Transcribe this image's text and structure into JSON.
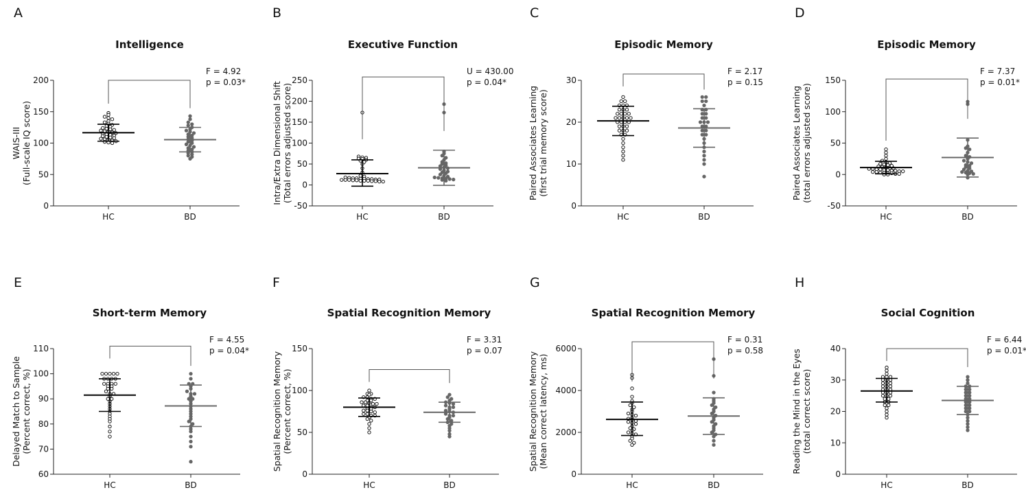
{
  "colors": {
    "hc": "#000000",
    "bd": "#666666",
    "bracket": "#555555",
    "axis": "#222222"
  },
  "chart_data": [
    {
      "panel": "A",
      "type": "scatter",
      "title": "Intelligence",
      "ylabel": [
        "WAIS-III",
        "(Full-scale IQ score)"
      ],
      "ylim": [
        0,
        200
      ],
      "yticks": [
        0,
        50,
        100,
        150,
        200
      ],
      "categories": [
        "HC",
        "BD"
      ],
      "series": [
        {
          "mean": 116.5,
          "sd_low": 103,
          "sd_high": 130,
          "values": [
            148,
            145,
            142,
            140,
            138,
            135,
            133,
            131,
            129,
            127,
            126,
            124,
            123,
            122,
            121,
            120,
            119,
            118,
            117,
            116,
            115,
            114,
            113,
            112,
            111,
            110,
            109,
            108,
            107,
            106,
            105,
            104,
            103,
            102,
            101,
            100
          ]
        },
        {
          "mean": 105.5,
          "sd_low": 86,
          "sd_high": 125,
          "values": [
            143,
            138,
            133,
            130,
            128,
            125,
            122,
            120,
            118,
            116,
            114,
            112,
            110,
            108,
            106,
            104,
            102,
            100,
            98,
            96,
            94,
            92,
            90,
            88,
            86,
            84,
            82,
            80,
            78,
            75
          ]
        }
      ],
      "stats": [
        "F = 4.92",
        "p = 0.03*"
      ],
      "bracket_top": 200
    },
    {
      "panel": "B",
      "type": "scatter",
      "title": "Executive Function",
      "ylabel": [
        "Intra/Extra Dimensional Shift",
        "(Total errors adjusted score)"
      ],
      "ylim": [
        -50,
        250
      ],
      "yticks": [
        -50,
        0,
        50,
        100,
        150,
        200,
        250
      ],
      "categories": [
        "HC",
        "BD"
      ],
      "series": [
        {
          "mean": 27,
          "sd_low": -3,
          "sd_high": 60,
          "values": [
            173,
            68,
            66,
            65,
            63,
            62,
            60,
            58,
            55,
            50,
            40,
            30,
            22,
            20,
            18,
            17,
            16,
            16,
            15,
            15,
            14,
            14,
            13,
            13,
            12,
            12,
            12,
            11,
            11,
            10,
            10,
            10,
            9,
            9,
            8,
            8
          ]
        },
        {
          "mean": 41,
          "sd_low": -1,
          "sd_high": 83,
          "values": [
            193,
            173,
            80,
            75,
            70,
            65,
            60,
            55,
            52,
            50,
            47,
            45,
            42,
            40,
            38,
            35,
            32,
            30,
            28,
            25,
            22,
            20,
            18,
            17,
            16,
            15,
            14,
            13,
            12,
            10
          ]
        }
      ],
      "stats": [
        "U = 430.00",
        "p = 0.04*"
      ],
      "bracket_top": 258
    },
    {
      "panel": "C",
      "type": "scatter",
      "title": "Episodic Memory",
      "ylabel": [
        "Paired Associates Learning",
        "(first trial memory score)"
      ],
      "ylim": [
        0,
        30
      ],
      "yticks": [
        0,
        10,
        20,
        30
      ],
      "categories": [
        "HC",
        "BD"
      ],
      "series": [
        {
          "mean": 20.3,
          "sd_low": 16.8,
          "sd_high": 23.8,
          "values": [
            26,
            25,
            25,
            24,
            24,
            24,
            23,
            23,
            23,
            22,
            22,
            22,
            22,
            21,
            21,
            21,
            21,
            21,
            20,
            20,
            20,
            20,
            19,
            19,
            19,
            18,
            18,
            18,
            17,
            17,
            16,
            15,
            14,
            13,
            12,
            11
          ]
        },
        {
          "mean": 18.6,
          "sd_low": 14,
          "sd_high": 23.2,
          "values": [
            26,
            26,
            25,
            25,
            24,
            23,
            23,
            22,
            22,
            21,
            21,
            20,
            20,
            20,
            19,
            19,
            18,
            18,
            17,
            17,
            16,
            15,
            14,
            13,
            12,
            11,
            10,
            7
          ]
        }
      ],
      "stats": [
        "F = 2.17",
        "p = 0.15"
      ],
      "bracket_top": 31.5
    },
    {
      "panel": "D",
      "type": "scatter",
      "title": "Episodic Memory",
      "ylabel": [
        "Paired Associates Learning",
        "(total errors adjusted score)"
      ],
      "ylim": [
        -50,
        150
      ],
      "yticks": [
        -50,
        0,
        50,
        100,
        150
      ],
      "categories": [
        "HC",
        "BD"
      ],
      "series": [
        {
          "mean": 11,
          "sd_low": 1,
          "sd_high": 21,
          "values": [
            40,
            35,
            30,
            25,
            22,
            20,
            18,
            17,
            16,
            15,
            14,
            13,
            12,
            11,
            10,
            10,
            9,
            9,
            8,
            8,
            7,
            7,
            6,
            6,
            5,
            5,
            4,
            4,
            3,
            3,
            2,
            2,
            1,
            1,
            0,
            0
          ]
        },
        {
          "mean": 27,
          "sd_low": -4,
          "sd_high": 58,
          "values": [
            116,
            112,
            55,
            45,
            42,
            40,
            35,
            30,
            28,
            25,
            22,
            20,
            18,
            15,
            14,
            12,
            10,
            8,
            6,
            5,
            4,
            3,
            2,
            1,
            0,
            -5
          ]
        }
      ],
      "stats": [
        "F = 7.37",
        "p = 0.01*"
      ],
      "bracket_top": 152
    },
    {
      "panel": "E",
      "type": "scatter",
      "title": "Short-term Memory",
      "ylabel": [
        "Delayed Match to Sample",
        "(Percent correct, %)"
      ],
      "ylim": [
        60,
        110
      ],
      "yticks": [
        60,
        70,
        80,
        90,
        100,
        110
      ],
      "categories": [
        "HC",
        "BD"
      ],
      "series": [
        {
          "mean": 91.5,
          "sd_low": 85,
          "sd_high": 98,
          "values": [
            100,
            100,
            100,
            100,
            100,
            98,
            98,
            98,
            98,
            96,
            96,
            96,
            96,
            95,
            95,
            94,
            94,
            93,
            92,
            92,
            91,
            90,
            90,
            89,
            88,
            87,
            86,
            85,
            84,
            83,
            82,
            81,
            79,
            77,
            75
          ]
        },
        {
          "mean": 87.2,
          "sd_low": 79,
          "sd_high": 95.5,
          "values": [
            100,
            98,
            96,
            96,
            95,
            94,
            93,
            92,
            92,
            91,
            90,
            90,
            89,
            88,
            87,
            86,
            85,
            84,
            83,
            82,
            81,
            80,
            79,
            78,
            77,
            75,
            73,
            71,
            65
          ]
        }
      ],
      "stats": [
        "F = 4.55",
        "p = 0.04*"
      ],
      "bracket_top": 111
    },
    {
      "panel": "F",
      "type": "scatter",
      "title": "Spatial Recognition Memory",
      "ylabel": [
        "Spatial Recognition Memory",
        "(Percent correct, %)"
      ],
      "ylim": [
        0,
        150
      ],
      "yticks": [
        0,
        50,
        100,
        150
      ],
      "categories": [
        "HC",
        "BD"
      ],
      "series": [
        {
          "mean": 80,
          "sd_low": 69,
          "sd_high": 91,
          "values": [
            100,
            96,
            96,
            95,
            92,
            92,
            90,
            90,
            88,
            88,
            86,
            86,
            85,
            84,
            84,
            82,
            82,
            80,
            80,
            78,
            78,
            76,
            76,
            75,
            74,
            72,
            72,
            70,
            70,
            68,
            66,
            64,
            60,
            55,
            50
          ]
        },
        {
          "mean": 74,
          "sd_low": 62,
          "sd_high": 86,
          "values": [
            95,
            92,
            90,
            88,
            86,
            85,
            84,
            82,
            80,
            80,
            78,
            76,
            75,
            74,
            72,
            70,
            70,
            68,
            66,
            64,
            62,
            60,
            58,
            55,
            52,
            48,
            45
          ]
        }
      ],
      "stats": [
        "F = 3.31",
        "p = 0.07"
      ],
      "bracket_top": 125
    },
    {
      "panel": "G",
      "type": "scatter",
      "title": "Spatial Recognition Memory",
      "ylabel": [
        "Spatial Recognition Memory",
        "(Mean correct latency, ms)"
      ],
      "ylim": [
        0,
        6000
      ],
      "yticks": [
        0,
        2000,
        4000,
        6000
      ],
      "categories": [
        "HC",
        "BD"
      ],
      "series": [
        {
          "mean": 2620,
          "sd_low": 1850,
          "sd_high": 3450,
          "values": [
            4750,
            4600,
            4100,
            3700,
            3500,
            3400,
            3300,
            3200,
            3100,
            3000,
            2900,
            2850,
            2800,
            2700,
            2650,
            2600,
            2550,
            2500,
            2450,
            2400,
            2300,
            2200,
            2150,
            2100,
            2000,
            1950,
            1900,
            1800,
            1700,
            1600,
            1500,
            1400
          ]
        },
        {
          "mean": 2780,
          "sd_low": 1900,
          "sd_high": 3650,
          "values": [
            5500,
            4700,
            3900,
            3600,
            3500,
            3400,
            3300,
            3200,
            3100,
            3000,
            2900,
            2800,
            2700,
            2600,
            2500,
            2400,
            2300,
            2200,
            2100,
            2000,
            1900,
            1800,
            1600,
            1400
          ]
        }
      ],
      "stats": [
        "F = 0.31",
        "p = 0.58"
      ],
      "bracket_top": 6650
    },
    {
      "panel": "H",
      "type": "scatter",
      "title": "Social Cognition",
      "ylabel": [
        "Reading the Mind in the Eyes",
        "(total correct score)"
      ],
      "ylim": [
        0,
        40
      ],
      "yticks": [
        0,
        10,
        20,
        30,
        40
      ],
      "categories": [
        "HC",
        "BD"
      ],
      "series": [
        {
          "mean": 26.5,
          "sd_low": 23,
          "sd_high": 30.5,
          "values": [
            34,
            33,
            32,
            31,
            31,
            31,
            30,
            30,
            30,
            29,
            29,
            29,
            28,
            28,
            28,
            27,
            27,
            27,
            26,
            26,
            26,
            25,
            25,
            25,
            24,
            24,
            23,
            23,
            22,
            22,
            21,
            20,
            19,
            18
          ]
        },
        {
          "mean": 23.5,
          "sd_low": 19,
          "sd_high": 28,
          "values": [
            31,
            30,
            29,
            28,
            28,
            27,
            27,
            26,
            26,
            25,
            25,
            24,
            24,
            23,
            23,
            22,
            22,
            21,
            21,
            20,
            20,
            19,
            18,
            17,
            16,
            15,
            14
          ]
        }
      ],
      "stats": [
        "F = 6.44",
        "p = 0.01*"
      ],
      "bracket_top": 40
    }
  ]
}
